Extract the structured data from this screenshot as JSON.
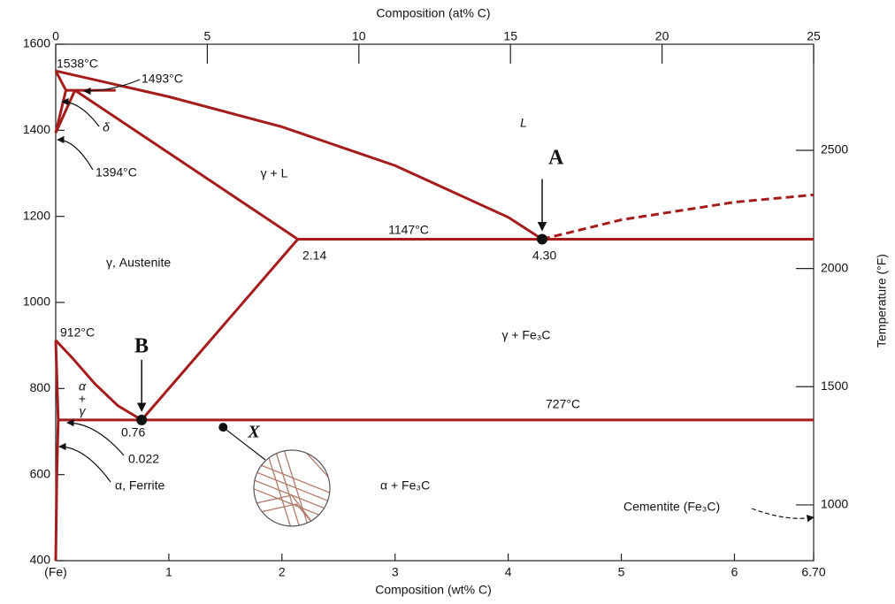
{
  "chart_data": {
    "type": "phase",
    "xlabel": "Composition (wt% C)",
    "x2label": "Composition (at% C)",
    "y2label": "Temperature (°F)",
    "xlim": [
      0,
      6.7
    ],
    "ylim": [
      400,
      1600
    ],
    "x2lim": [
      0,
      25
    ],
    "y2lim": [
      764,
      2949
    ],
    "xticks": [
      {
        "value": 0,
        "label": "(Fe)"
      },
      1,
      2,
      3,
      4,
      5,
      6,
      {
        "value": 6.7,
        "label": "6.70"
      }
    ],
    "yticks": [
      400,
      600,
      800,
      1000,
      1200,
      1400,
      1600
    ],
    "x2ticks": [
      0,
      5,
      10,
      15,
      20,
      25
    ],
    "y2ticks": [
      1000,
      1500,
      2000,
      2500
    ],
    "color": "#a51c1c",
    "series": [
      {
        "x": [
          0,
          1,
          2,
          3,
          4,
          4.3
        ],
        "values": [
          1538,
          1478,
          1408,
          1318,
          1198,
          1147
        ]
      },
      {
        "x": [
          0,
          0.09
        ],
        "values": [
          1538,
          1493
        ]
      },
      {
        "x": [
          0.09,
          0.53
        ],
        "values": [
          1493,
          1493
        ]
      },
      {
        "x": [
          0.09,
          0
        ],
        "values": [
          1493,
          1394
        ]
      },
      {
        "x": [
          0.17,
          0
        ],
        "values": [
          1493,
          1394
        ]
      },
      {
        "x": [
          0.17,
          2.14
        ],
        "values": [
          1493,
          1147
        ]
      },
      {
        "x": [
          2.14,
          6.7
        ],
        "values": [
          1147,
          1147
        ]
      },
      {
        "x": [
          2.14,
          0.76
        ],
        "values": [
          1147,
          727
        ]
      },
      {
        "x": [
          0,
          0.15,
          0.35,
          0.55,
          0.76
        ],
        "values": [
          912,
          870,
          810,
          760,
          727
        ]
      },
      {
        "x": [
          0.022,
          6.7
        ],
        "values": [
          727,
          727
        ]
      },
      {
        "x": [
          0,
          0.022
        ],
        "values": [
          912,
          727
        ]
      },
      {
        "x": [
          0.022,
          0.01,
          0
        ],
        "values": [
          727,
          600,
          400
        ]
      },
      {
        "x": [
          4.3,
          5,
          6,
          6.7
        ],
        "values": [
          1147,
          1192,
          1233,
          1250
        ],
        "dashed": true
      }
    ],
    "points": [
      {
        "label": "A",
        "x": 4.3,
        "y": 1147
      },
      {
        "label": "B",
        "x": 0.76,
        "y": 727
      },
      {
        "label": "X",
        "x": 1.48,
        "y": 710
      }
    ],
    "annotations": [
      "1538°C",
      "1493°C",
      "δ",
      "1394°C",
      "γ + L",
      "L",
      "1147°C",
      "2.14",
      "4.30",
      "γ, Austenite",
      "912°C",
      "γ + Fe₃C",
      "727°C",
      "α",
      "+",
      "γ",
      "0.76",
      "0.022",
      "α, Ferrite",
      "α + Fe₃C",
      "Cementite (Fe₃C)"
    ]
  }
}
